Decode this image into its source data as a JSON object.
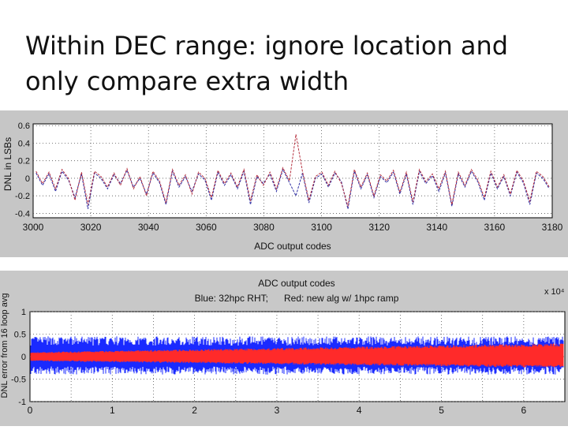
{
  "slide": {
    "title_line1": "Within DEC range: ignore location and",
    "title_line2": "only compare extra width"
  },
  "chart_data": [
    {
      "type": "line",
      "title": "",
      "xlabel": "ADC output codes",
      "ylabel": "DNL in LSBs",
      "xlim": [
        3000,
        3180
      ],
      "ylim": [
        -0.45,
        0.62
      ],
      "x_ticks": [
        "3000",
        "3020",
        "3040",
        "3060",
        "3080",
        "3100",
        "3120",
        "3140",
        "3160",
        "3180"
      ],
      "y_ticks": [
        "0.6",
        "0.4",
        "0.2",
        "0",
        "-0.2",
        "-0.4"
      ],
      "grid": "dotted",
      "series": [
        {
          "color": "#1a1a9a",
          "values": [
            0.06,
            -0.08,
            0.05,
            -0.15,
            0.08,
            -0.02,
            -0.22,
            0.05,
            -0.35,
            0.06,
            0.0,
            -0.12,
            0.04,
            -0.06,
            0.09,
            -0.1,
            0.0,
            -0.18,
            0.06,
            -0.05,
            -0.3,
            0.08,
            -0.1,
            0.02,
            -0.15,
            0.05,
            -0.02,
            -0.25,
            0.07,
            -0.08,
            0.04,
            -0.12,
            0.08,
            -0.3,
            0.02,
            -0.06,
            0.05,
            -0.15,
            0.1,
            -0.05,
            -0.2,
            0.06,
            -0.28,
            0.0,
            0.05,
            -0.1,
            0.06,
            -0.04,
            -0.35,
            0.08,
            -0.12,
            0.04,
            -0.22,
            0.02,
            -0.05,
            0.07,
            -0.18,
            0.05,
            -0.3,
            0.08,
            -0.06,
            0.03,
            -0.15,
            0.06,
            -0.32,
            0.05,
            -0.1,
            0.08,
            -0.04,
            -0.25,
            0.06,
            -0.12,
            0.02,
            -0.2,
            0.07,
            -0.05,
            -0.3,
            0.06,
            0.0,
            -0.12
          ]
        },
        {
          "color": "#b02030",
          "values": [
            0.08,
            -0.06,
            0.07,
            -0.12,
            0.1,
            0.0,
            -0.25,
            0.07,
            -0.3,
            0.08,
            0.02,
            -0.1,
            0.06,
            -0.08,
            0.11,
            -0.12,
            0.02,
            -0.2,
            0.08,
            -0.03,
            -0.28,
            0.1,
            -0.08,
            0.04,
            -0.18,
            0.07,
            0.0,
            -0.22,
            0.09,
            -0.06,
            0.06,
            -0.1,
            0.1,
            -0.26,
            0.04,
            -0.08,
            0.07,
            -0.12,
            0.12,
            -0.03,
            0.5,
            0.08,
            -0.25,
            0.02,
            0.07,
            -0.08,
            0.08,
            -0.06,
            -0.32,
            0.1,
            -0.1,
            0.06,
            -0.2,
            0.04,
            -0.03,
            0.09,
            -0.16,
            0.07,
            -0.27,
            0.1,
            -0.04,
            0.05,
            -0.12,
            0.08,
            -0.3,
            0.07,
            -0.08,
            0.1,
            -0.02,
            -0.22,
            0.08,
            -0.1,
            0.04,
            -0.18,
            0.09,
            -0.03,
            -0.26,
            0.08,
            0.02,
            -0.1
          ]
        }
      ]
    },
    {
      "type": "line",
      "title": "ADC output codes",
      "subtitle": "Blue: 32hpc RHT;      Red: new alg w/ 1hpc ramp",
      "xlabel": "",
      "ylabel": "DNL error from 16 loop avg",
      "x_multiplier": "x 10⁴",
      "xlim": [
        0,
        6.5
      ],
      "ylim": [
        -1,
        1
      ],
      "x_ticks": [
        "0",
        "1",
        "2",
        "3",
        "4",
        "5",
        "6"
      ],
      "y_ticks": [
        "1",
        "0.5",
        "0",
        "-0.5",
        "-1"
      ],
      "grid": "dotted",
      "series": [
        {
          "color": "#1a2aff",
          "band": [
            -0.4,
            0.45
          ]
        },
        {
          "color": "#ff2a2a",
          "band_start": [
            -0.1,
            0.1
          ],
          "band_end": [
            -0.25,
            0.3
          ]
        }
      ]
    }
  ]
}
